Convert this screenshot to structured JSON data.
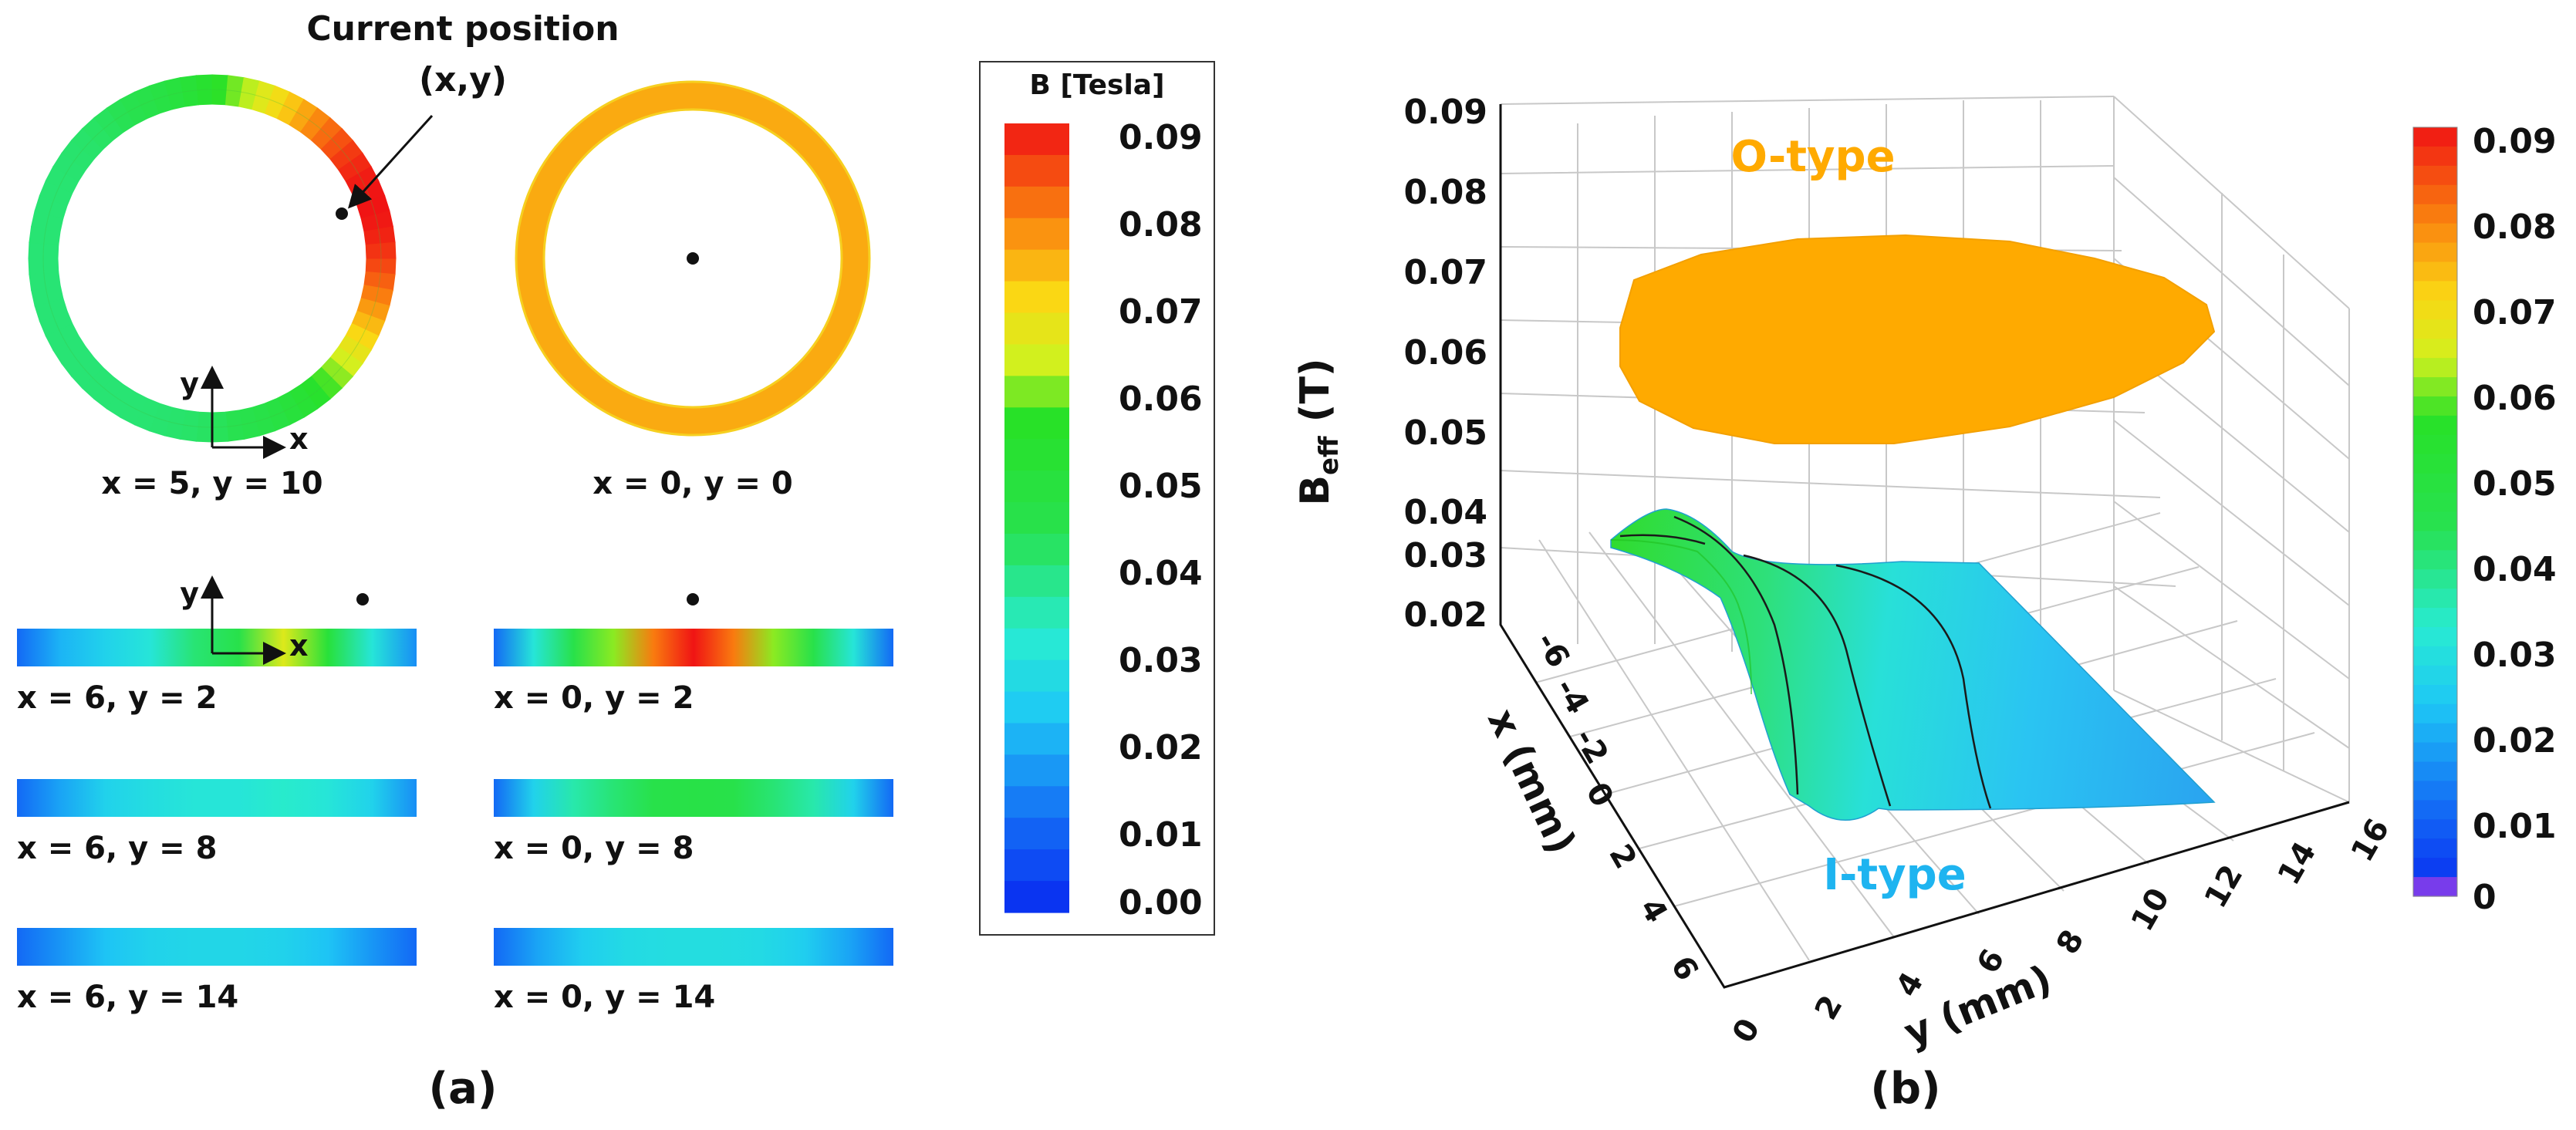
{
  "chart_data": [
    {
      "panel": "a",
      "type": "heatmap",
      "caption": "(a)",
      "annotation": {
        "title": "Current position",
        "subtitle": "(x,y)"
      },
      "axis_labels": {
        "x": "x",
        "y": "y"
      },
      "ring_views": [
        {
          "label": "x = 5, y = 10",
          "pattern": "offset",
          "show_axes": true
        },
        {
          "label": "x = 0, y = 0",
          "pattern": "uniform",
          "ring_value": 0.075
        }
      ],
      "strip_views": [
        {
          "label": "x = 6, y = 2",
          "column": 0,
          "row": 0,
          "show_dot": true,
          "show_axes": true,
          "profile": [
            0.01,
            0.02,
            0.025,
            0.03,
            0.04,
            0.045,
            0.065,
            0.05,
            0.03,
            0.015
          ]
        },
        {
          "label": "x = 0, y = 2",
          "column": 1,
          "row": 0,
          "show_dot": true,
          "show_axes": false,
          "profile": [
            0.01,
            0.03,
            0.045,
            0.06,
            0.08,
            0.09,
            0.08,
            0.06,
            0.045,
            0.03,
            0.01
          ]
        },
        {
          "label": "x = 6, y = 8",
          "column": 0,
          "row": 1,
          "profile": [
            0.01,
            0.018,
            0.025,
            0.028,
            0.03,
            0.03,
            0.032,
            0.03,
            0.025,
            0.015
          ]
        },
        {
          "label": "x = 0, y = 8",
          "column": 1,
          "row": 1,
          "profile": [
            0.01,
            0.025,
            0.035,
            0.04,
            0.045,
            0.046,
            0.045,
            0.04,
            0.035,
            0.025,
            0.01
          ]
        },
        {
          "label": "x = 6, y = 14",
          "column": 0,
          "row": 2,
          "profile": [
            0.01,
            0.016,
            0.022,
            0.025,
            0.026,
            0.026,
            0.025,
            0.022,
            0.016,
            0.01
          ]
        },
        {
          "label": "x = 0, y = 14",
          "column": 1,
          "row": 2,
          "profile": [
            0.01,
            0.018,
            0.024,
            0.027,
            0.028,
            0.028,
            0.027,
            0.024,
            0.018,
            0.01
          ]
        }
      ],
      "colorbar": {
        "title": "B [Tesla]",
        "range": [
          0,
          0.09
        ],
        "ticks": [
          "0.09",
          "0.08",
          "0.07",
          "0.06",
          "0.05",
          "0.04",
          "0.03",
          "0.02",
          "0.01",
          "0.00"
        ]
      }
    },
    {
      "panel": "b",
      "type": "surface3d",
      "caption": "(b)",
      "zlabel": "B",
      "zlabel_sub": "eff",
      "zlabel_unit": " (T)",
      "xlabel": "x (mm)",
      "ylabel": "y (mm)",
      "zticks": [
        "0.09",
        "0.08",
        "0.07",
        "0.06",
        "0.05",
        "0.04",
        "0.03",
        "0.02"
      ],
      "xticks": [
        "-6",
        "-4",
        "-2",
        "0",
        "2",
        "4",
        "6"
      ],
      "yticks": [
        "0",
        "2",
        "4",
        "6",
        "8",
        "10",
        "12",
        "14",
        "16"
      ],
      "xlim": [
        -6,
        6
      ],
      "ylim": [
        0,
        16
      ],
      "zlim": [
        0.02,
        0.09
      ],
      "series": [
        {
          "name": "O-type",
          "color": "#FFAA00",
          "shape": "disc",
          "b_eff": 0.065
        },
        {
          "name": "I-type",
          "color": "#1EB4F0",
          "shape": "sheet",
          "b_eff_range": [
            0.015,
            0.045
          ]
        }
      ],
      "colorbar": {
        "range": [
          0,
          0.09
        ],
        "ticks": [
          "0.09",
          "0.08",
          "0.07",
          "0.06",
          "0.05",
          "0.04",
          "0.03",
          "0.02",
          "0.01",
          "0"
        ]
      }
    }
  ]
}
